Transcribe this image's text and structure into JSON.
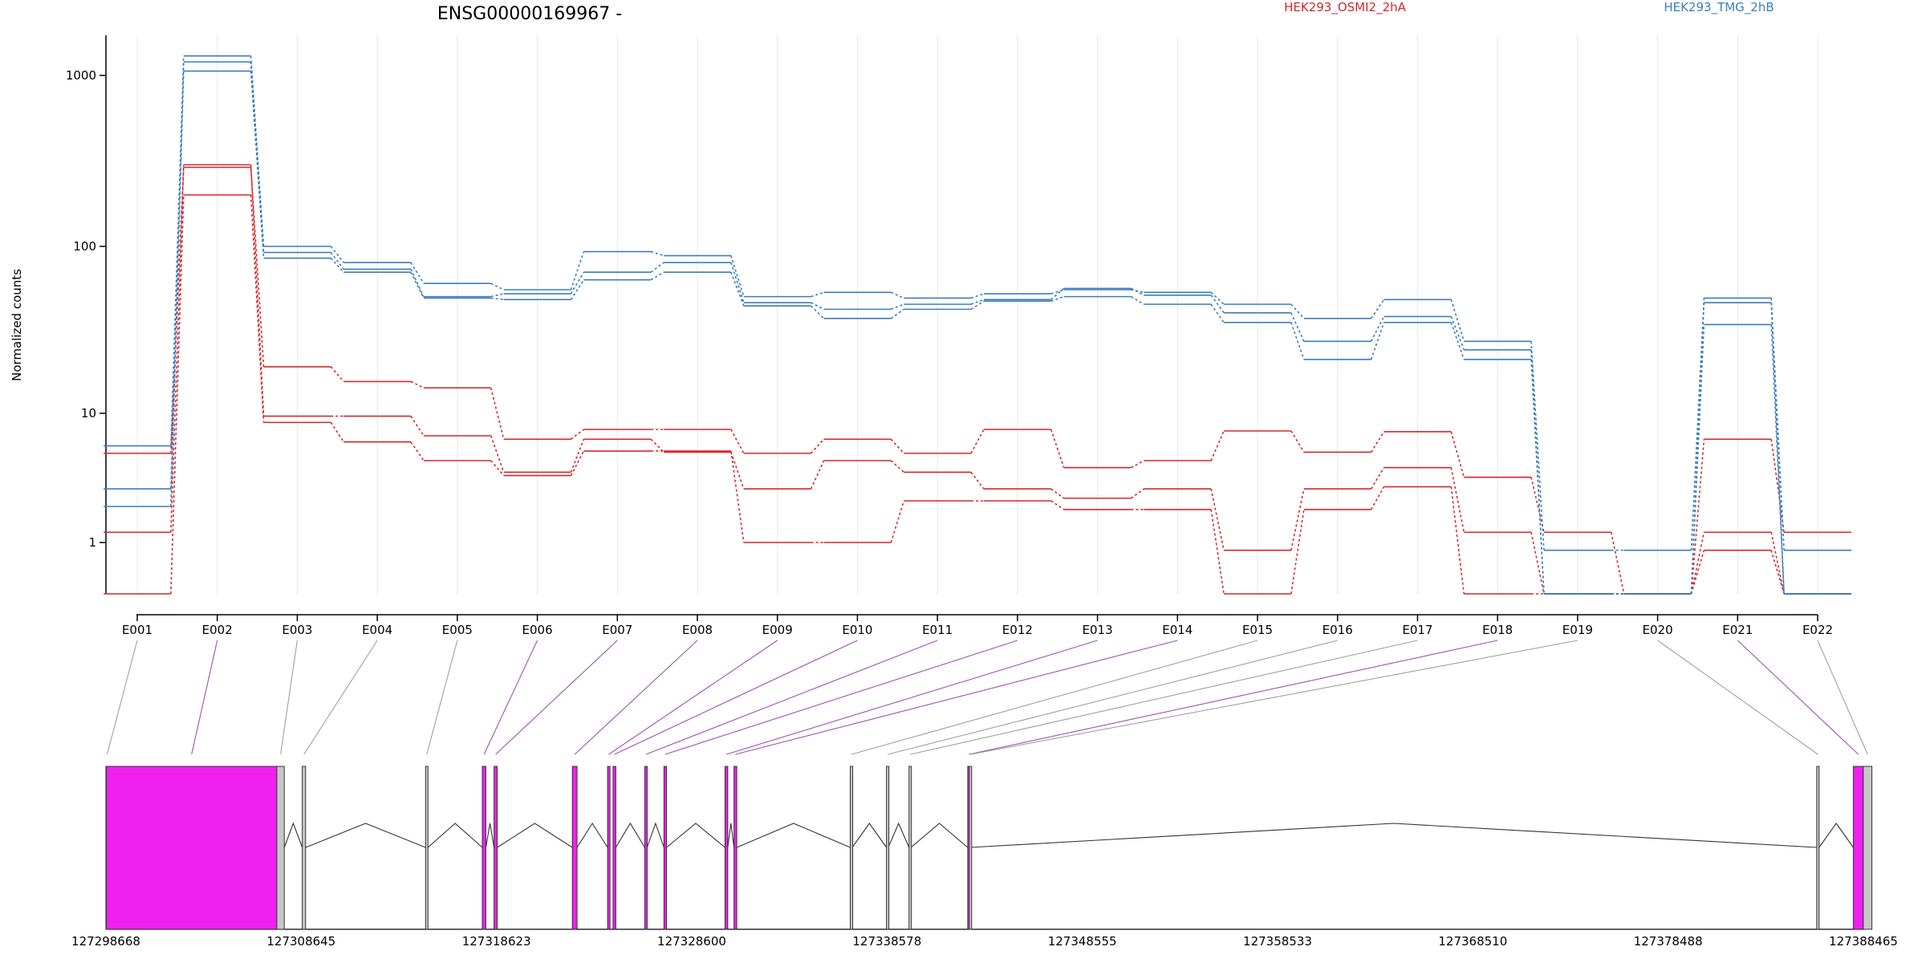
{
  "chart_data": {
    "type": "line",
    "title": "ENSG00000169967 -",
    "ylabel": "Normalized counts",
    "xlabel": "",
    "y_scale": "log",
    "ylim": [
      0.5,
      1700
    ],
    "y_ticks": [
      1,
      10,
      100,
      1000
    ],
    "y_tick_labels": [
      "1",
      "10",
      "100",
      "1000"
    ],
    "grid": "vertical",
    "legend": "top",
    "categories": [
      "E001",
      "E002",
      "E003",
      "E004",
      "E005",
      "E006",
      "E007",
      "E008",
      "E009",
      "E010",
      "E011",
      "E012",
      "E013",
      "E014",
      "E015",
      "E016",
      "E017",
      "E018",
      "E019",
      "E020",
      "E021",
      "E022"
    ],
    "series": [
      {
        "name": "HEK293_OSMI2_2hA",
        "group": "HEK293_OSMI2_2hA",
        "color": "#d62728",
        "values": [
          4.9,
          290,
          19,
          15.5,
          14.2,
          6.3,
          7.5,
          7.5,
          4.9,
          6.3,
          4.9,
          7.5,
          3.8,
          4.3,
          7.3,
          5.0,
          7.2,
          3.2,
          1.2,
          0.5,
          6.3,
          1.2
        ]
      },
      {
        "name": "",
        "group": "HEK293_OSMI2_2hA",
        "color": "#d62728",
        "values": [
          1.2,
          300,
          9.5,
          9.5,
          6.7,
          3.5,
          6.3,
          5.0,
          2.6,
          4.3,
          3.5,
          2.6,
          2.2,
          2.6,
          0.9,
          2.6,
          3.8,
          1.2,
          0.5,
          0.5,
          1.2,
          0.5
        ]
      },
      {
        "name": "",
        "group": "HEK293_OSMI2_2hA",
        "color": "#d62728",
        "values": [
          0.5,
          200,
          8.5,
          6.0,
          4.3,
          3.3,
          5.1,
          5.1,
          1.0,
          1.0,
          2.1,
          2.1,
          1.8,
          1.8,
          0.5,
          1.8,
          2.7,
          0.5,
          0.5,
          0.5,
          0.9,
          0.5
        ]
      },
      {
        "name": "HEK293_TMG_2hB",
        "group": "HEK293_TMG_2hB",
        "color": "#3a7dbf",
        "values": [
          5.6,
          1300,
          100,
          80,
          60,
          55,
          93,
          88,
          50,
          53,
          49,
          52,
          55,
          53,
          45,
          37,
          48,
          27,
          0.9,
          0.9,
          49,
          0.9
        ]
      },
      {
        "name": "",
        "group": "HEK293_TMG_2hB",
        "color": "#3a7dbf",
        "values": [
          2.6,
          1200,
          92,
          73,
          50,
          52,
          70,
          80,
          46,
          42,
          45,
          48,
          56,
          51,
          40,
          27,
          38,
          24,
          0.5,
          0.5,
          46,
          0.5
        ]
      },
      {
        "name": "",
        "group": "HEK293_TMG_2hB",
        "color": "#3a7dbf",
        "values": [
          1.9,
          1060,
          85,
          70,
          49,
          48,
          63,
          70,
          44,
          37,
          42,
          47,
          50,
          45,
          35,
          21,
          35,
          21,
          0.5,
          0.5,
          34,
          0.5
        ]
      }
    ],
    "gene_model": {
      "coord_ticks": [
        "127298668",
        "127308645",
        "127318623",
        "127328600",
        "127338578",
        "127348555",
        "127358533",
        "127368510",
        "127378488",
        "127388465"
      ],
      "exons": [
        {
          "id": "E001",
          "x0": 127298668,
          "x1": 127298690,
          "diff": false
        },
        {
          "id": "E002",
          "x0": 127298690,
          "x1": 127307400,
          "diff": true
        },
        {
          "id": "E003",
          "x0": 127307400,
          "x1": 127307780,
          "diff": false
        },
        {
          "id": "E004",
          "x0": 127308700,
          "x1": 127308870,
          "diff": false
        },
        {
          "id": "E005",
          "x0": 127315000,
          "x1": 127315120,
          "diff": false
        },
        {
          "id": "E006",
          "x0": 127317900,
          "x1": 127318080,
          "diff": true
        },
        {
          "id": "E007",
          "x0": 127318500,
          "x1": 127318660,
          "diff": true
        },
        {
          "id": "E008",
          "x0": 127322500,
          "x1": 127322740,
          "diff": true
        },
        {
          "id": "E009",
          "x0": 127324300,
          "x1": 127324420,
          "diff": true
        },
        {
          "id": "E010",
          "x0": 127324580,
          "x1": 127324720,
          "diff": true
        },
        {
          "id": "E011",
          "x0": 127326200,
          "x1": 127326320,
          "diff": true
        },
        {
          "id": "E012",
          "x0": 127327180,
          "x1": 127327310,
          "diff": true
        },
        {
          "id": "E013",
          "x0": 127330300,
          "x1": 127330440,
          "diff": true
        },
        {
          "id": "E014",
          "x0": 127330760,
          "x1": 127330900,
          "diff": true
        },
        {
          "id": "E015",
          "x0": 127336700,
          "x1": 127336800,
          "diff": false
        },
        {
          "id": "E016",
          "x0": 127338550,
          "x1": 127338640,
          "diff": false
        },
        {
          "id": "E017",
          "x0": 127339700,
          "x1": 127339800,
          "diff": false
        },
        {
          "id": "E018",
          "x0": 127342700,
          "x1": 127342780,
          "diff": true
        },
        {
          "id": "E019",
          "x0": 127342780,
          "x1": 127342830,
          "diff": false
        },
        {
          "id": "E020",
          "x0": 127386080,
          "x1": 127386200,
          "diff": false
        },
        {
          "id": "E021",
          "x0": 127387950,
          "x1": 127388460,
          "diff": true
        },
        {
          "id": "E022",
          "x0": 127388460,
          "x1": 127388900,
          "diff": false
        }
      ]
    }
  },
  "colors": {
    "osmi": "#d62728",
    "tmg": "#3a7dbf",
    "diff_exon": "#f020f0",
    "plain_exon": "#c8c8c8",
    "diff_link": "#a050b0",
    "plain_link": "#a0a0a0"
  }
}
